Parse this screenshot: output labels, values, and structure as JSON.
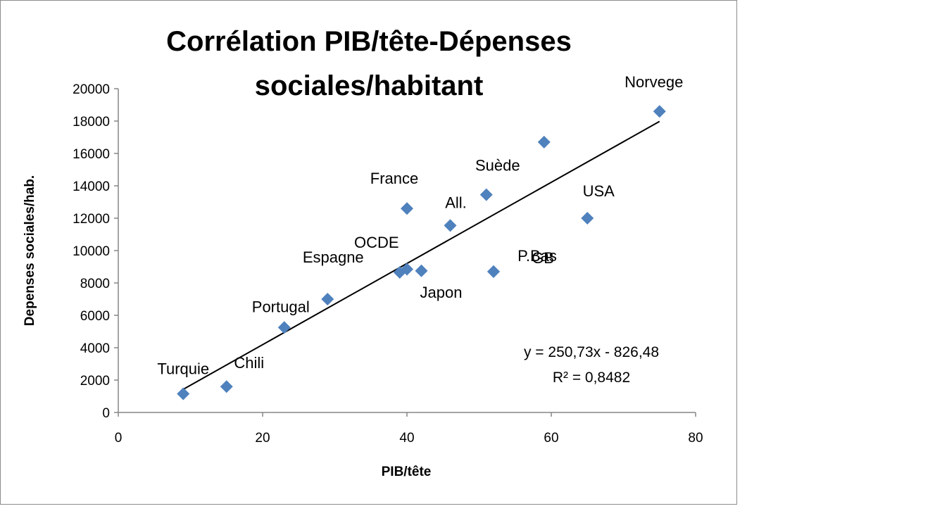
{
  "chart_data": {
    "type": "scatter",
    "title_lines": [
      "Corrélation PIB/tête-Dépenses",
      "sociales/habitant"
    ],
    "xlabel": "PIB/tête",
    "ylabel": "Depenses sociales/hab.",
    "xlim": [
      0,
      80
    ],
    "ylim": [
      0,
      20000
    ],
    "xticks": [
      "0",
      "20",
      "40",
      "60",
      "80"
    ],
    "yticks": [
      "0",
      "2000",
      "4000",
      "6000",
      "8000",
      "10000",
      "12000",
      "14000",
      "16000",
      "18000",
      "20000"
    ],
    "grid": false,
    "legend": "none",
    "marker_color": "#4f81bd",
    "trendline_color": "#000000",
    "points": [
      {
        "label": "Turquie",
        "x": 9,
        "y": 1150
      },
      {
        "label": "Chili",
        "x": 15,
        "y": 1600
      },
      {
        "label": "Portugal",
        "x": 23,
        "y": 5250
      },
      {
        "label": "Espagne",
        "x": 29,
        "y": 7000
      },
      {
        "label": "OCDE",
        "x": 39,
        "y": 8650
      },
      {
        "label": "",
        "x": 40,
        "y": 8850
      },
      {
        "label": "Japon",
        "x": 42,
        "y": 8750
      },
      {
        "label": "France",
        "x": 40,
        "y": 12600
      },
      {
        "label": "All.",
        "x": 46,
        "y": 11550
      },
      {
        "label": "Suède",
        "x": 51,
        "y": 13450
      },
      {
        "label": "GB",
        "x": 52,
        "y": 8700
      },
      {
        "label": "",
        "x": 59,
        "y": 16700
      },
      {
        "label": "USA",
        "x": 65,
        "y": 12000
      },
      {
        "label": "P.Bas",
        "x": 52,
        "y": 8700
      },
      {
        "label": "Norvege",
        "x": 75,
        "y": 18600
      }
    ],
    "trendline": {
      "slope": 250.73,
      "intercept": -826.48,
      "x_range": [
        9,
        75
      ],
      "equation": "y = 250,73x - 826,48",
      "r_squared": "R² = 0,8482"
    }
  }
}
